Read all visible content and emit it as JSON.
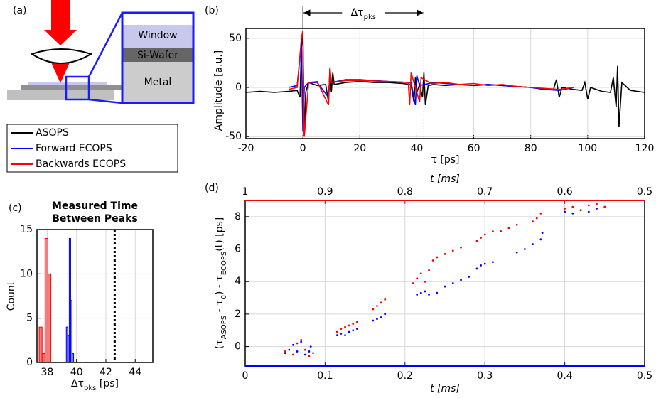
{
  "diagram": {
    "label": "(a)",
    "layers": [
      "Window",
      "Si-Wafer",
      "Metal"
    ]
  },
  "chart_data": [
    {
      "type": "line",
      "label": "(b)",
      "xlabel": "τ [ps]",
      "ylabel": "Amplitude [a.u.]",
      "annotation": [
        "Δτ",
        "pks"
      ],
      "marker_x": 42.5,
      "xlim": [
        -20,
        120
      ],
      "xticks": [
        -20,
        0,
        20,
        40,
        60,
        80,
        100,
        120
      ],
      "ylim": [
        -52,
        60
      ],
      "yticks": [
        -50,
        0,
        50
      ],
      "grid": true,
      "legend": "left",
      "series": [
        {
          "name": "ASOPS",
          "color": "#000000",
          "x": [
            -20,
            -15,
            -10,
            -5,
            -2,
            -1,
            -0.5,
            0,
            0.5,
            1,
            2,
            5,
            8,
            9,
            9.5,
            10,
            10.5,
            11,
            15,
            20,
            25,
            30,
            35,
            38,
            39,
            39.5,
            40,
            41,
            42,
            42.5,
            43,
            44,
            46,
            50,
            55,
            60,
            65,
            70,
            75,
            80,
            85,
            88,
            89,
            90,
            91,
            95,
            98,
            99,
            100,
            101,
            105,
            108,
            109,
            110,
            110.5,
            111,
            112,
            115,
            120
          ],
          "values": [
            -5,
            -4,
            -5,
            -4,
            -3,
            -10,
            40,
            55,
            -50,
            -5,
            5,
            2,
            3,
            -15,
            20,
            -5,
            15,
            3,
            5,
            6,
            5,
            5,
            4,
            3,
            -15,
            10,
            -5,
            3,
            -10,
            15,
            -18,
            2,
            3,
            2,
            3,
            2,
            3,
            2,
            1,
            0,
            -2,
            -2,
            8,
            -10,
            0,
            -2,
            -3,
            5,
            -12,
            0,
            -4,
            -5,
            10,
            -20,
            22,
            -40,
            5,
            -3,
            -5
          ]
        },
        {
          "name": "Forward ECOPS",
          "color": "#0000ff",
          "x": [
            -5,
            -2,
            -0.5,
            0,
            0.5,
            2,
            5,
            9,
            9.5,
            10,
            15,
            20,
            30,
            38,
            39.5,
            40,
            41,
            46,
            50,
            55,
            60,
            65,
            70,
            75,
            80,
            85,
            90,
            95
          ],
          "values": [
            0,
            2,
            45,
            -45,
            0,
            5,
            5,
            -10,
            15,
            5,
            8,
            8,
            6,
            5,
            -18,
            12,
            2,
            5,
            4,
            3,
            2,
            3,
            2,
            1,
            0,
            -2,
            -3,
            0
          ]
        },
        {
          "name": "Backwards ECOPS",
          "color": "#ff0000",
          "x": [
            -5,
            -2,
            -0.5,
            0,
            0.5,
            2,
            5,
            9,
            9.5,
            10,
            15,
            20,
            30,
            37,
            37.5,
            38,
            41,
            41.5,
            45,
            50,
            55,
            60,
            65,
            70,
            75,
            80,
            85,
            90,
            95
          ],
          "values": [
            -2,
            0,
            50,
            58,
            -50,
            5,
            6,
            -18,
            20,
            5,
            7,
            7,
            6,
            5,
            -18,
            15,
            -15,
            10,
            4,
            5,
            3,
            4,
            2,
            3,
            1,
            0,
            -1,
            -2,
            0
          ]
        }
      ]
    },
    {
      "type": "histogram",
      "label": "(c)",
      "title": [
        "Measured Time",
        "Between Peaks"
      ],
      "xlabel": [
        "Δτ",
        "pks",
        " [ps]"
      ],
      "ylabel": "Count",
      "xlim": [
        37.3,
        45.2
      ],
      "xticks": [
        38,
        40,
        42,
        44
      ],
      "ylim": [
        0,
        15
      ],
      "yticks": [
        0,
        5,
        10,
        15
      ],
      "grid": true,
      "marker_x": 42.6,
      "series": [
        {
          "color": "#ff0000",
          "fill": "#f08080",
          "bins": [
            37.45,
            37.65,
            37.85,
            38.05,
            38.25
          ],
          "values": [
            4,
            1,
            14,
            10
          ]
        },
        {
          "color": "#0000ff",
          "fill": "#8080ff",
          "bins": [
            39.3,
            39.4,
            39.5,
            39.6,
            39.7,
            39.8
          ],
          "values": [
            4,
            3,
            14,
            7,
            1
          ]
        }
      ]
    },
    {
      "type": "scatter",
      "label": "(d)",
      "xlabel": "t [ms]",
      "x2label": "t [ms]",
      "ylabel": [
        "(τ",
        "ASOPS",
        " - τ",
        "0",
        ") - τ",
        "ECOPS",
        "(t) [ps]"
      ],
      "xlim": [
        0,
        0.5
      ],
      "xticks": [
        0,
        0.1,
        0.2,
        0.3,
        0.4,
        0.5
      ],
      "x2lim": [
        1,
        0.5
      ],
      "x2ticks": [
        1,
        0.9,
        0.8,
        0.7,
        0.6,
        0.5
      ],
      "ylim": [
        -1.2,
        9
      ],
      "yticks": [
        0,
        2,
        4,
        6,
        8
      ],
      "grid": true,
      "xcolor": "#0000ff",
      "x2color": "#ff0000",
      "series": [
        {
          "color": "#0000ff",
          "x": [
            0.05,
            0.055,
            0.06,
            0.065,
            0.07,
            0.075,
            0.08,
            0.082,
            0.115,
            0.12,
            0.125,
            0.13,
            0.135,
            0.14,
            0.16,
            0.165,
            0.17,
            0.175,
            0.215,
            0.22,
            0.225,
            0.23,
            0.24,
            0.25,
            0.26,
            0.27,
            0.28,
            0.29,
            0.295,
            0.3,
            0.31,
            0.34,
            0.35,
            0.36,
            0.37,
            0.372,
            0.4,
            0.41,
            0.42,
            0.43,
            0.44,
            0.45
          ],
          "values": [
            -0.4,
            -0.2,
            0.1,
            -0.3,
            0.3,
            -0.5,
            -0.3,
            0.0,
            0.7,
            0.8,
            0.7,
            0.9,
            1.0,
            1.1,
            1.6,
            1.7,
            1.8,
            2.0,
            3.2,
            3.3,
            3.4,
            3.2,
            3.3,
            3.7,
            3.9,
            4.1,
            4.3,
            4.8,
            5.0,
            5.1,
            5.2,
            5.8,
            6.0,
            6.3,
            6.6,
            7.0,
            8.3,
            8.2,
            8.4,
            8.3,
            8.5,
            8.6
          ]
        },
        {
          "color": "#ff0000",
          "axis": "x2",
          "x": [
            0.95,
            0.94,
            0.935,
            0.93,
            0.925,
            0.92,
            0.915,
            0.885,
            0.88,
            0.875,
            0.87,
            0.865,
            0.86,
            0.84,
            0.835,
            0.83,
            0.825,
            0.79,
            0.785,
            0.78,
            0.775,
            0.77,
            0.765,
            0.76,
            0.75,
            0.74,
            0.73,
            0.71,
            0.705,
            0.7,
            0.69,
            0.68,
            0.67,
            0.66,
            0.64,
            0.635,
            0.63,
            0.6,
            0.59,
            0.58,
            0.57,
            0.56,
            0.55
          ],
          "values": [
            -0.3,
            -0.5,
            0.2,
            0.4,
            -0.2,
            -0.6,
            -0.4,
            0.9,
            1.1,
            1.2,
            1.3,
            1.4,
            1.5,
            2.3,
            2.5,
            2.7,
            2.9,
            3.9,
            4.2,
            4.5,
            4.0,
            4.7,
            5.3,
            5.5,
            5.7,
            5.9,
            6.1,
            6.5,
            6.7,
            6.9,
            7.1,
            7.1,
            7.3,
            7.5,
            7.7,
            7.9,
            8.2,
            8.5,
            8.6,
            8.4,
            8.7,
            8.8,
            8.6
          ]
        }
      ]
    }
  ]
}
